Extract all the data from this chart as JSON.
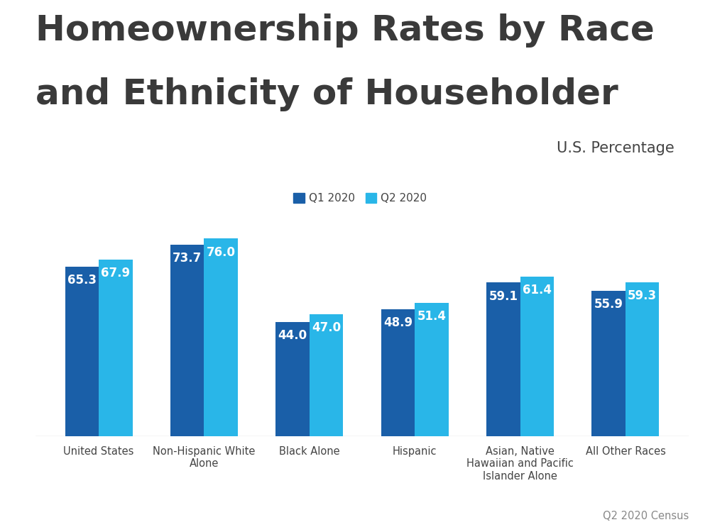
{
  "title_line1": "Homeownership Rates by Race",
  "title_line2": "and Ethnicity of Householder",
  "subtitle": "U.S. Percentage",
  "source": "Q2 2020 Census",
  "categories": [
    "United States",
    "Non-Hispanic White\nAlone",
    "Black Alone",
    "Hispanic",
    "Asian, Native\nHawaiian and Pacific\nIslander Alone",
    "All Other Races"
  ],
  "q1_values": [
    65.3,
    73.7,
    44.0,
    48.9,
    59.1,
    55.9
  ],
  "q2_values": [
    67.9,
    76.0,
    47.0,
    51.4,
    61.4,
    59.3
  ],
  "q1_color": "#1a5fa8",
  "q2_color": "#29b6e8",
  "q1_label": "Q1 2020",
  "q2_label": "Q2 2020",
  "background_color": "#ffffff",
  "title_color": "#3a3a3a",
  "bar_label_fontsize": 12,
  "ylim": [
    0,
    90
  ],
  "bar_width": 0.32
}
